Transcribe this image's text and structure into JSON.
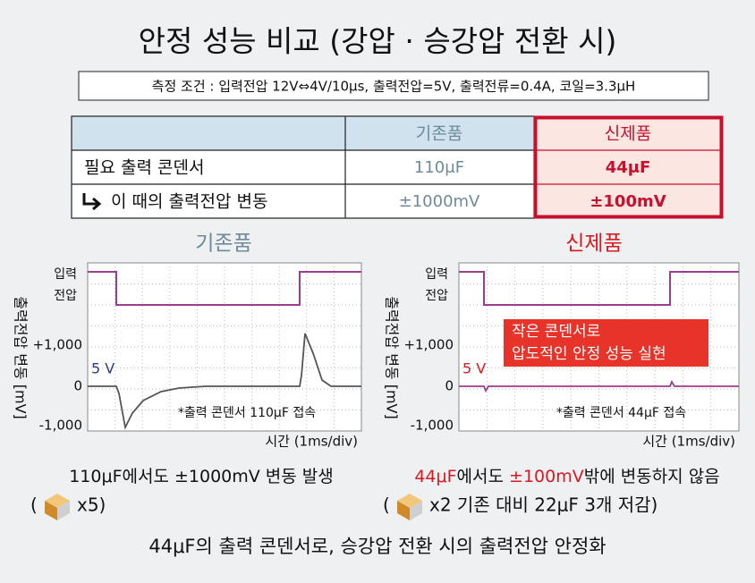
{
  "title": "안정 성능 비교 (강압 · 승강압 전환 시)",
  "conditions": "측정 조건 : 입력전압 12V⇔4V/10μs, 출력전압=5V, 출력전류=0.4A, 코일=3.3μH",
  "table": {
    "columns": [
      "기존품",
      "신제품"
    ],
    "rows": [
      [
        "필요 출력 콘덴서",
        "110μF",
        "44μF"
      ],
      [
        "이 때의 출력전압 변동",
        "±1000mV",
        "±100mV"
      ]
    ]
  },
  "panels": [
    {
      "title": "기존품",
      "input_label": [
        "입력",
        "전압"
      ],
      "y_axis_title": "출력전압 변동 [mV]",
      "y_tick_labels": [
        "+1,000",
        "0",
        "-1,000"
      ],
      "level": "5 V",
      "note": "*출력 콘덴서 110μF 접속",
      "x_axis_title": "시간 (1ms/div)"
    },
    {
      "title": "신제품",
      "input_label": [
        "입력",
        "전압"
      ],
      "y_axis_title": "출력전압 변동 [mV]",
      "y_tick_labels": [
        "+1,000",
        "0",
        "-1,000"
      ],
      "level": "5 V",
      "note": "*출력 콘덴서 44μF 접속",
      "x_axis_title": "시간 (1ms/div)",
      "callout": [
        "작은 콘덴서로",
        "압도적인 안정 성능 실현"
      ]
    }
  ],
  "captions": [
    {
      "parts": [
        "110μF에서도 ±1000mV 변동 발생"
      ],
      "open": "(",
      "multiplier": "x5)"
    },
    {
      "parts": [
        "44μF",
        "에서도 ",
        "±100mV",
        "밖에 변동하지 않음"
      ],
      "open": "(",
      "multiplier": "x2 기존 대비 22μF 3개 저감)"
    }
  ],
  "summary": "44μF의 출력 콘덴서로, 승강압 전환 시의 출력전압 안정화"
}
